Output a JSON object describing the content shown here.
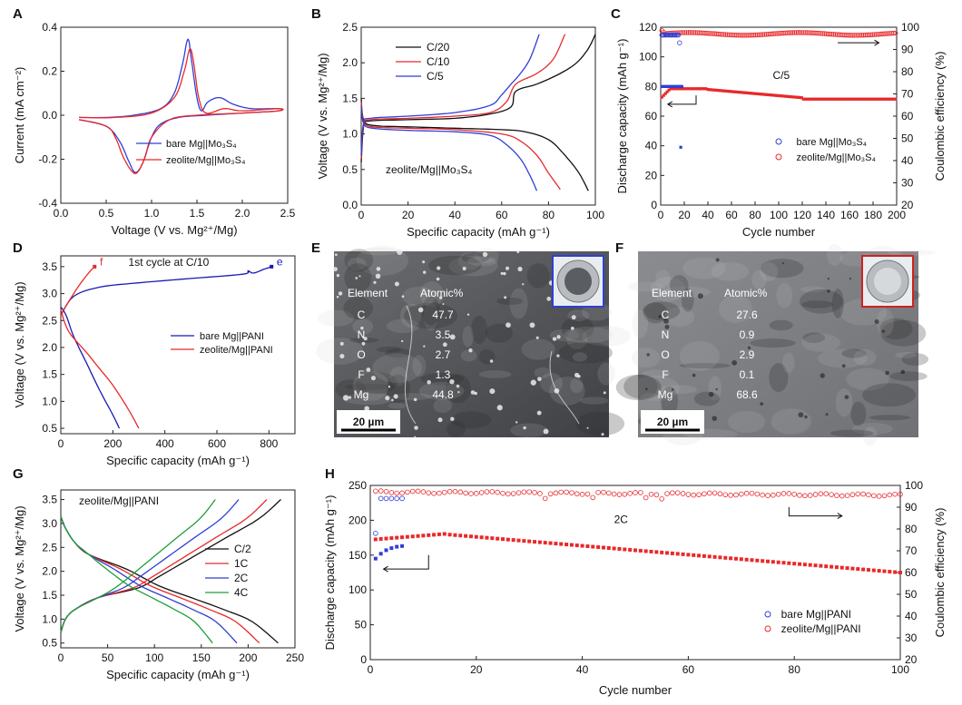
{
  "colors": {
    "black": "#111111",
    "red": "#e8292b",
    "blue": "#2f3fd4",
    "green": "#1e9e3b",
    "blueDark": "#1a1ab4"
  },
  "panels": {
    "A": {
      "letter": "A"
    },
    "B": {
      "letter": "B"
    },
    "C": {
      "letter": "C"
    },
    "D": {
      "letter": "D"
    },
    "E": {
      "letter": "E",
      "scale": "20 µm",
      "table_head": [
        "Element",
        "Atomic%"
      ],
      "rows": [
        [
          "C",
          "47.7"
        ],
        [
          "N",
          "3.5"
        ],
        [
          "O",
          "2.7"
        ],
        [
          "F",
          "1.3"
        ],
        [
          "Mg",
          "44.8"
        ]
      ]
    },
    "F": {
      "letter": "F",
      "scale": "20 µm",
      "table_head": [
        "Element",
        "Atomic%"
      ],
      "rows": [
        [
          "C",
          "27.6"
        ],
        [
          "N",
          "0.9"
        ],
        [
          "O",
          "2.9"
        ],
        [
          "F",
          "0.1"
        ],
        [
          "Mg",
          "68.6"
        ]
      ]
    },
    "G": {
      "letter": "G"
    },
    "H": {
      "letter": "H"
    }
  },
  "chart_data": [
    {
      "id": "A",
      "type": "line",
      "xlabel": "Voltage (V vs. Mg²⁺/Mg)",
      "ylabel": "Current (mA cm⁻²)",
      "xlim": [
        0,
        2.5
      ],
      "ylim": [
        -0.4,
        0.4
      ],
      "xticks": [
        "0.0",
        "0.5",
        "1.0",
        "1.5",
        "2.0",
        "2.5"
      ],
      "yticks": [
        "-0.4",
        "-0.2",
        "0.0",
        "0.2",
        "0.4"
      ],
      "series": [
        {
          "name": "bare Mg||Mo₃S₄",
          "color": "blue",
          "points": [
            [
              0.2,
              -0.02
            ],
            [
              0.5,
              -0.05
            ],
            [
              0.65,
              -0.12
            ],
            [
              0.75,
              -0.21
            ],
            [
              0.82,
              -0.26
            ],
            [
              0.9,
              -0.22
            ],
            [
              1.0,
              -0.1
            ],
            [
              1.1,
              -0.04
            ],
            [
              1.3,
              -0.01
            ],
            [
              1.6,
              0.0
            ],
            [
              2.0,
              0.01
            ],
            [
              2.4,
              0.02
            ],
            [
              2.4,
              0.03
            ],
            [
              2.1,
              0.03
            ],
            [
              1.9,
              0.05
            ],
            [
              1.75,
              0.08
            ],
            [
              1.62,
              0.06
            ],
            [
              1.55,
              0.02
            ],
            [
              1.5,
              0.08
            ],
            [
              1.44,
              0.25
            ],
            [
              1.4,
              0.345
            ],
            [
              1.34,
              0.23
            ],
            [
              1.25,
              0.1
            ],
            [
              1.1,
              0.03
            ],
            [
              0.8,
              0.0
            ],
            [
              0.5,
              -0.01
            ],
            [
              0.2,
              -0.01
            ]
          ]
        },
        {
          "name": "zeolite/Mg||Mo₃S₄",
          "color": "red",
          "points": [
            [
              0.2,
              -0.02
            ],
            [
              0.5,
              -0.05
            ],
            [
              0.6,
              -0.1
            ],
            [
              0.7,
              -0.2
            ],
            [
              0.82,
              -0.265
            ],
            [
              0.92,
              -0.2
            ],
            [
              1.0,
              -0.1
            ],
            [
              1.2,
              -0.02
            ],
            [
              1.5,
              0.0
            ],
            [
              2.0,
              0.01
            ],
            [
              2.4,
              0.02
            ],
            [
              2.4,
              0.03
            ],
            [
              2.0,
              0.02
            ],
            [
              1.8,
              0.03
            ],
            [
              1.6,
              0.01
            ],
            [
              1.52,
              0.08
            ],
            [
              1.46,
              0.25
            ],
            [
              1.42,
              0.3
            ],
            [
              1.36,
              0.2
            ],
            [
              1.25,
              0.08
            ],
            [
              1.0,
              0.01
            ],
            [
              0.6,
              -0.01
            ],
            [
              0.2,
              -0.01
            ]
          ]
        }
      ],
      "legend": "lower-right"
    },
    {
      "id": "B",
      "type": "line",
      "xlabel": "Specific capacity (mAh g⁻¹)",
      "ylabel": "Voltage (V vs. Mg²⁺/Mg)",
      "xlim": [
        0,
        100
      ],
      "ylim": [
        0,
        2.5
      ],
      "xticks": [
        "0",
        "20",
        "40",
        "60",
        "80",
        "100"
      ],
      "yticks": [
        "0.0",
        "0.5",
        "1.0",
        "1.5",
        "2.0",
        "2.5"
      ],
      "annotation": "zeolite/Mg||Mo₃S₄",
      "series": [
        {
          "name": "C/20",
          "color": "black",
          "points": [
            [
              0,
              1.5
            ],
            [
              1,
              1.2
            ],
            [
              5,
              1.12
            ],
            [
              20,
              1.1
            ],
            [
              40,
              1.08
            ],
            [
              60,
              1.06
            ],
            [
              70,
              1.03
            ],
            [
              80,
              0.92
            ],
            [
              87,
              0.7
            ],
            [
              93,
              0.45
            ],
            [
              97,
              0.2
            ]
          ],
          "charge": [
            [
              0,
              0.6
            ],
            [
              1,
              1.1
            ],
            [
              3,
              1.18
            ],
            [
              20,
              1.2
            ],
            [
              40,
              1.22
            ],
            [
              55,
              1.28
            ],
            [
              64,
              1.38
            ],
            [
              66,
              1.6
            ],
            [
              75,
              1.7
            ],
            [
              85,
              1.85
            ],
            [
              92,
              2.0
            ],
            [
              97,
              2.2
            ],
            [
              100,
              2.4
            ]
          ]
        },
        {
          "name": "C/10",
          "color": "red",
          "points": [
            [
              0,
              1.45
            ],
            [
              1,
              1.18
            ],
            [
              5,
              1.1
            ],
            [
              20,
              1.08
            ],
            [
              40,
              1.06
            ],
            [
              60,
              1.0
            ],
            [
              68,
              0.9
            ],
            [
              75,
              0.7
            ],
            [
              80,
              0.45
            ],
            [
              85,
              0.22
            ]
          ],
          "charge": [
            [
              0,
              0.65
            ],
            [
              1,
              1.12
            ],
            [
              4,
              1.2
            ],
            [
              20,
              1.22
            ],
            [
              40,
              1.25
            ],
            [
              55,
              1.3
            ],
            [
              62,
              1.45
            ],
            [
              66,
              1.7
            ],
            [
              75,
              1.85
            ],
            [
              82,
              2.05
            ],
            [
              87,
              2.4
            ]
          ]
        },
        {
          "name": "C/5",
          "color": "blue",
          "points": [
            [
              0,
              1.4
            ],
            [
              1,
              1.15
            ],
            [
              5,
              1.08
            ],
            [
              20,
              1.05
            ],
            [
              40,
              1.03
            ],
            [
              55,
              0.98
            ],
            [
              62,
              0.85
            ],
            [
              68,
              0.65
            ],
            [
              72,
              0.42
            ],
            [
              75,
              0.2
            ]
          ],
          "charge": [
            [
              0,
              0.7
            ],
            [
              1,
              1.15
            ],
            [
              4,
              1.22
            ],
            [
              20,
              1.25
            ],
            [
              40,
              1.3
            ],
            [
              55,
              1.4
            ],
            [
              60,
              1.55
            ],
            [
              64,
              1.7
            ],
            [
              68,
              1.85
            ],
            [
              72,
              2.05
            ],
            [
              76,
              2.4
            ]
          ]
        }
      ],
      "legend": "top-left"
    },
    {
      "id": "C",
      "type": "scatter",
      "xlabel": "Cycle number",
      "ylabel": "Discharge capacity (mAh g⁻¹)",
      "y2label": "Coulombic efficiency (%)",
      "xlim": [
        0,
        200
      ],
      "ylim": [
        0,
        120
      ],
      "y2lim": [
        20,
        100
      ],
      "xticks": [
        "0",
        "20",
        "40",
        "60",
        "80",
        "100",
        "120",
        "140",
        "160",
        "180",
        "200"
      ],
      "yticks": [
        "0",
        "20",
        "40",
        "60",
        "80",
        "100",
        "120"
      ],
      "y2ticks": [
        "20",
        "30",
        "40",
        "50",
        "60",
        "70",
        "80",
        "90",
        "100"
      ],
      "annotation": "C/5",
      "series": [
        {
          "name": "bare Mg||Mo₃S₄",
          "color": "blue",
          "axis": "y",
          "filled": true,
          "desc": "capacity ~80 for cycles 1-18, then 38 at cycle 17"
        },
        {
          "name": "bare Mg||Mo₃S₄ CE",
          "color": "blue",
          "axis": "y2",
          "filled": false
        },
        {
          "name": "zeolite/Mg||Mo₃S₄",
          "color": "red",
          "axis": "y",
          "filled": true
        },
        {
          "name": "zeolite/Mg||Mo₃S₄ CE",
          "color": "red",
          "axis": "y2",
          "filled": false
        }
      ],
      "legend": "lower-right"
    },
    {
      "id": "D",
      "type": "line",
      "xlabel": "Specific capacity (mAh g⁻¹)",
      "ylabel": "Voltage (V vs. Mg²⁺/Mg)",
      "xlim": [
        0,
        900
      ],
      "ylim": [
        0.4,
        3.7
      ],
      "xticks": [
        "0",
        "200",
        "400",
        "600",
        "800"
      ],
      "yticks": [
        "0.5",
        "1.0",
        "1.5",
        "2.0",
        "2.5",
        "3.0",
        "3.5"
      ],
      "annotation": "1st cycle at C/10",
      "labels": [
        "f",
        "e"
      ],
      "series": [
        {
          "name": "bare Mg||PANI",
          "color": "blueDark",
          "points": [
            [
              0,
              2.75
            ],
            [
              20,
              2.6
            ],
            [
              50,
              2.2
            ],
            [
              100,
              1.7
            ],
            [
              150,
              1.2
            ],
            [
              200,
              0.75
            ],
            [
              225,
              0.5
            ]
          ],
          "charge": [
            [
              0,
              2.6
            ],
            [
              50,
              2.95
            ],
            [
              150,
              3.12
            ],
            [
              300,
              3.2
            ],
            [
              500,
              3.28
            ],
            [
              700,
              3.36
            ],
            [
              720,
              3.42
            ],
            [
              740,
              3.38
            ],
            [
              780,
              3.45
            ],
            [
              810,
              3.5
            ]
          ]
        },
        {
          "name": "zeolite/Mg||PANI",
          "color": "red",
          "points": [
            [
              0,
              2.7
            ],
            [
              30,
              2.3
            ],
            [
              100,
              1.9
            ],
            [
              150,
              1.6
            ],
            [
              200,
              1.3
            ],
            [
              260,
              0.85
            ],
            [
              300,
              0.5
            ]
          ],
          "charge": [
            [
              0,
              2.6
            ],
            [
              30,
              2.85
            ],
            [
              70,
              3.15
            ],
            [
              110,
              3.4
            ],
            [
              130,
              3.5
            ]
          ]
        }
      ],
      "legend": "right-middle"
    },
    {
      "id": "G",
      "type": "line",
      "xlabel": "Specific capacity (mAh g⁻¹)",
      "ylabel": "Voltage (V vs. Mg²⁺/Mg)",
      "xlim": [
        0,
        250
      ],
      "ylim": [
        0.4,
        3.7
      ],
      "xticks": [
        "0",
        "50",
        "100",
        "150",
        "200",
        "250"
      ],
      "yticks": [
        "0.5",
        "1.0",
        "1.5",
        "2.0",
        "2.5",
        "3.0",
        "3.5"
      ],
      "annotation": "zeolite/Mg||PANI",
      "series": [
        {
          "name": "C/2",
          "color": "black",
          "end": 235,
          "dend": 232
        },
        {
          "name": "1C",
          "color": "red",
          "end": 220,
          "dend": 212
        },
        {
          "name": "2C",
          "color": "blue",
          "end": 190,
          "dend": 188
        },
        {
          "name": "4C",
          "color": "green",
          "end": 165,
          "dend": 162
        }
      ],
      "legend": "right-middle"
    },
    {
      "id": "H",
      "type": "scatter",
      "xlabel": "Cycle number",
      "ylabel": "Discharge capacity (mAh g⁻¹)",
      "y2label": "Coulombic efficiency (%)",
      "xlim": [
        0,
        100
      ],
      "ylim": [
        0,
        250
      ],
      "y2lim": [
        20,
        100
      ],
      "xticks": [
        "0",
        "20",
        "40",
        "60",
        "80",
        "100"
      ],
      "yticks": [
        "0",
        "50",
        "100",
        "150",
        "200",
        "250"
      ],
      "y2ticks": [
        "20",
        "30",
        "40",
        "50",
        "60",
        "70",
        "80",
        "90",
        "100"
      ],
      "annotation": "2C",
      "series": [
        {
          "name": "bare Mg||PANI",
          "color": "blue"
        },
        {
          "name": "zeolite/Mg||PANI",
          "color": "red"
        }
      ],
      "legend": "lower-right"
    }
  ]
}
